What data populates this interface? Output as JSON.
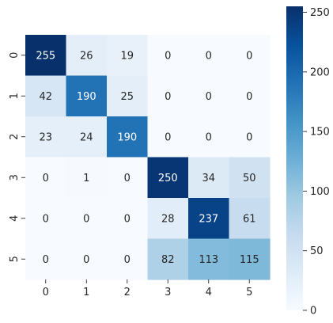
{
  "chart_data": {
    "type": "heatmap",
    "x_categories": [
      "0",
      "1",
      "2",
      "3",
      "4",
      "5"
    ],
    "y_categories": [
      "0",
      "1",
      "2",
      "3",
      "4",
      "5"
    ],
    "values": [
      [
        255,
        26,
        19,
        0,
        0,
        0
      ],
      [
        42,
        190,
        25,
        0,
        0,
        0
      ],
      [
        23,
        24,
        190,
        0,
        0,
        0
      ],
      [
        0,
        1,
        0,
        250,
        34,
        50
      ],
      [
        0,
        0,
        0,
        28,
        237,
        61
      ],
      [
        0,
        0,
        0,
        82,
        113,
        115
      ]
    ],
    "vmin": 0,
    "vmax": 255,
    "colormap": "Blues",
    "colorbar_ticks": [
      0,
      50,
      100,
      150,
      200,
      250
    ],
    "title": "",
    "xlabel": "",
    "ylabel": ""
  },
  "colors": {
    "low": "#f7fbff",
    "high": "#08306b",
    "text_dark": "#262626",
    "text_light": "#ffffff"
  }
}
